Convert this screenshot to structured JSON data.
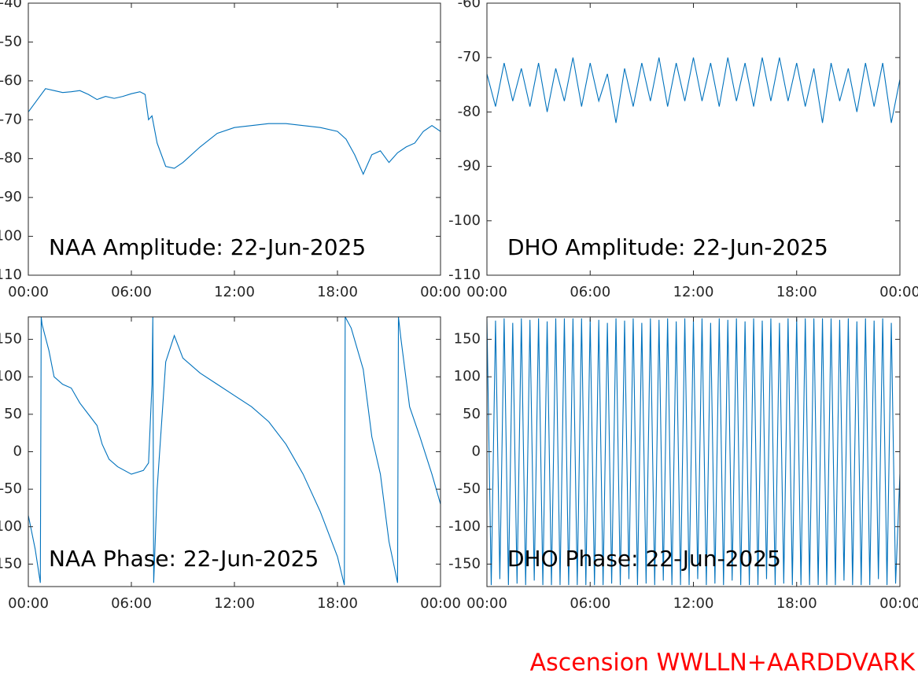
{
  "chart_data": [
    {
      "type": "line",
      "title": "NAA Amplitude: 22-Jun-2025",
      "color": "#0072BD",
      "xlim": [
        0,
        24
      ],
      "xticks": [
        {
          "value": 0,
          "label": "00:00"
        },
        {
          "value": 6,
          "label": "06:00"
        },
        {
          "value": 12,
          "label": "12:00"
        },
        {
          "value": 18,
          "label": "18:00"
        },
        {
          "value": 24,
          "label": "00:00"
        }
      ],
      "ylim": [
        -110,
        -40
      ],
      "yticks": [
        -110,
        -100,
        -90,
        -80,
        -70,
        -60,
        -50,
        -40
      ],
      "x": [
        0,
        0.5,
        1,
        1.5,
        2,
        2.5,
        3,
        3.5,
        4,
        4.5,
        5,
        5.5,
        6,
        6.5,
        6.8,
        7,
        7.2,
        7.5,
        8,
        8.5,
        9,
        10,
        11,
        12,
        13,
        14,
        15,
        16,
        17,
        18,
        18.5,
        19,
        19.5,
        20,
        20.5,
        21,
        21.5,
        22,
        22.5,
        23,
        23.5,
        24
      ],
      "values": [
        -68,
        -65,
        -62,
        -62.5,
        -63,
        -62.8,
        -62.5,
        -63.5,
        -64.8,
        -64,
        -64.5,
        -64,
        -63.3,
        -62.8,
        -63.5,
        -70,
        -69,
        -76,
        -82,
        -82.5,
        -81,
        -77,
        -73.5,
        -72,
        -71.5,
        -71,
        -71,
        -71.5,
        -72,
        -73,
        -75,
        -79,
        -84,
        -79,
        -78,
        -81,
        -78.5,
        -77,
        -76,
        -73,
        -71.5,
        -73
      ]
    },
    {
      "type": "line",
      "title": "DHO Amplitude: 22-Jun-2025",
      "color": "#0072BD",
      "xlim": [
        0,
        24
      ],
      "xticks": [
        {
          "value": 0,
          "label": "00:00"
        },
        {
          "value": 6,
          "label": "06:00"
        },
        {
          "value": 12,
          "label": "12:00"
        },
        {
          "value": 18,
          "label": "18:00"
        },
        {
          "value": 24,
          "label": "00:00"
        }
      ],
      "ylim": [
        -110,
        -60
      ],
      "yticks": [
        -110,
        -100,
        -90,
        -80,
        -70,
        -60
      ],
      "x": [
        0,
        0.5,
        1,
        1.5,
        2,
        2.5,
        3,
        3.5,
        4,
        4.5,
        5,
        5.5,
        6,
        6.5,
        7,
        7.5,
        8,
        8.5,
        9,
        9.5,
        10,
        10.5,
        11,
        11.5,
        12,
        12.5,
        13,
        13.5,
        14,
        14.5,
        15,
        15.5,
        16,
        16.5,
        17,
        17.5,
        18,
        18.5,
        19,
        19.5,
        20,
        20.5,
        21,
        21.5,
        22,
        22.5,
        23,
        23.5,
        24
      ],
      "values": [
        -73,
        -79,
        -71,
        -78,
        -72,
        -79,
        -71,
        -80,
        -72,
        -78,
        -70,
        -79,
        -71,
        -78,
        -73,
        -82,
        -72,
        -79,
        -71,
        -78,
        -70,
        -79,
        -71,
        -78,
        -70,
        -78,
        -71,
        -79,
        -70,
        -78,
        -71,
        -79,
        -70,
        -78,
        -70,
        -78,
        -71,
        -79,
        -72,
        -82,
        -71,
        -78,
        -72,
        -80,
        -71,
        -79,
        -71,
        -82,
        -74
      ]
    },
    {
      "type": "line",
      "title": "NAA Phase: 22-Jun-2025",
      "color": "#0072BD",
      "xlim": [
        0,
        24
      ],
      "xticks": [
        {
          "value": 0,
          "label": "00:00"
        },
        {
          "value": 6,
          "label": "06:00"
        },
        {
          "value": 12,
          "label": "12:00"
        },
        {
          "value": 18,
          "label": "18:00"
        },
        {
          "value": 24,
          "label": "00:00"
        }
      ],
      "ylim": [
        -180,
        180
      ],
      "yticks": [
        -150,
        -100,
        -50,
        0,
        50,
        100,
        150
      ],
      "x": [
        0,
        0.4,
        0.7,
        0.75,
        0.8,
        1.2,
        1.5,
        2,
        2.5,
        3,
        3.5,
        4,
        4.3,
        4.7,
        5.2,
        6,
        6.7,
        7,
        7.2,
        7.25,
        7.3,
        7.5,
        8,
        8.5,
        9,
        10,
        11,
        12,
        13,
        14,
        15,
        16,
        17,
        18,
        18.4,
        18.45,
        18.8,
        19.5,
        20,
        20.5,
        21,
        21.5,
        21.55,
        21.7,
        22.2,
        22.8,
        23.5,
        24
      ],
      "values": [
        -85,
        -130,
        -175,
        180,
        170,
        135,
        100,
        90,
        85,
        65,
        50,
        35,
        10,
        -10,
        -20,
        -30,
        -25,
        -15,
        90,
        180,
        -175,
        -50,
        120,
        155,
        125,
        105,
        90,
        75,
        60,
        40,
        10,
        -30,
        -80,
        -140,
        -178,
        180,
        165,
        110,
        20,
        -30,
        -120,
        -175,
        180,
        150,
        60,
        20,
        -30,
        -70
      ]
    },
    {
      "type": "line",
      "title": "DHO Phase: 22-Jun-2025",
      "color": "#0072BD",
      "xlim": [
        0,
        24
      ],
      "xticks": [
        {
          "value": 0,
          "label": "00:00"
        },
        {
          "value": 6,
          "label": "06:00"
        },
        {
          "value": 12,
          "label": "12:00"
        },
        {
          "value": 18,
          "label": "18:00"
        },
        {
          "value": 24,
          "label": "00:00"
        }
      ],
      "ylim": [
        -180,
        180
      ],
      "yticks": [
        -150,
        -100,
        -50,
        0,
        50,
        100,
        150
      ],
      "x": [
        0,
        0.25,
        0.5,
        0.75,
        1,
        1.25,
        1.5,
        1.75,
        2,
        2.25,
        2.5,
        2.75,
        3,
        3.25,
        3.5,
        3.75,
        4,
        4.25,
        4.5,
        4.75,
        5,
        5.25,
        5.5,
        5.75,
        6,
        6.25,
        6.5,
        6.75,
        7,
        7.25,
        7.5,
        7.75,
        8,
        8.25,
        8.5,
        8.75,
        9,
        9.25,
        9.5,
        9.75,
        10,
        10.25,
        10.5,
        10.75,
        11,
        11.25,
        11.5,
        11.75,
        12,
        12.25,
        12.5,
        12.75,
        13,
        13.25,
        13.5,
        13.75,
        14,
        14.25,
        14.5,
        14.75,
        15,
        15.25,
        15.5,
        15.75,
        16,
        16.25,
        16.5,
        16.75,
        17,
        17.25,
        17.5,
        17.75,
        18,
        18.25,
        18.5,
        18.75,
        19,
        19.25,
        19.5,
        19.75,
        20,
        20.25,
        20.5,
        20.75,
        21,
        21.25,
        21.5,
        21.75,
        22,
        22.25,
        22.5,
        22.75,
        23,
        23.25,
        23.5,
        23.75,
        24
      ],
      "values": [
        178,
        -178,
        175,
        -170,
        178,
        -178,
        172,
        -176,
        178,
        -178,
        176,
        -172,
        178,
        -178,
        174,
        -178,
        178,
        -178,
        178,
        -178,
        178,
        -178,
        178,
        -178,
        178,
        -178,
        176,
        -178,
        172,
        -176,
        178,
        -178,
        175,
        -170,
        178,
        -178,
        172,
        -176,
        178,
        -178,
        176,
        -172,
        178,
        -178,
        174,
        -178,
        178,
        -178,
        175,
        -170,
        178,
        -178,
        172,
        -176,
        178,
        -178,
        176,
        -172,
        178,
        -178,
        174,
        -178,
        178,
        -178,
        175,
        -170,
        178,
        -178,
        172,
        -176,
        178,
        -178,
        178,
        -178,
        178,
        -178,
        178,
        -178,
        178,
        -178,
        178,
        -178,
        176,
        -172,
        178,
        -178,
        174,
        -178,
        178,
        -178,
        175,
        -170,
        178,
        -178,
        172,
        -176,
        -30
      ]
    }
  ],
  "footer": "Ascension WWLLN+AARDDVARK"
}
